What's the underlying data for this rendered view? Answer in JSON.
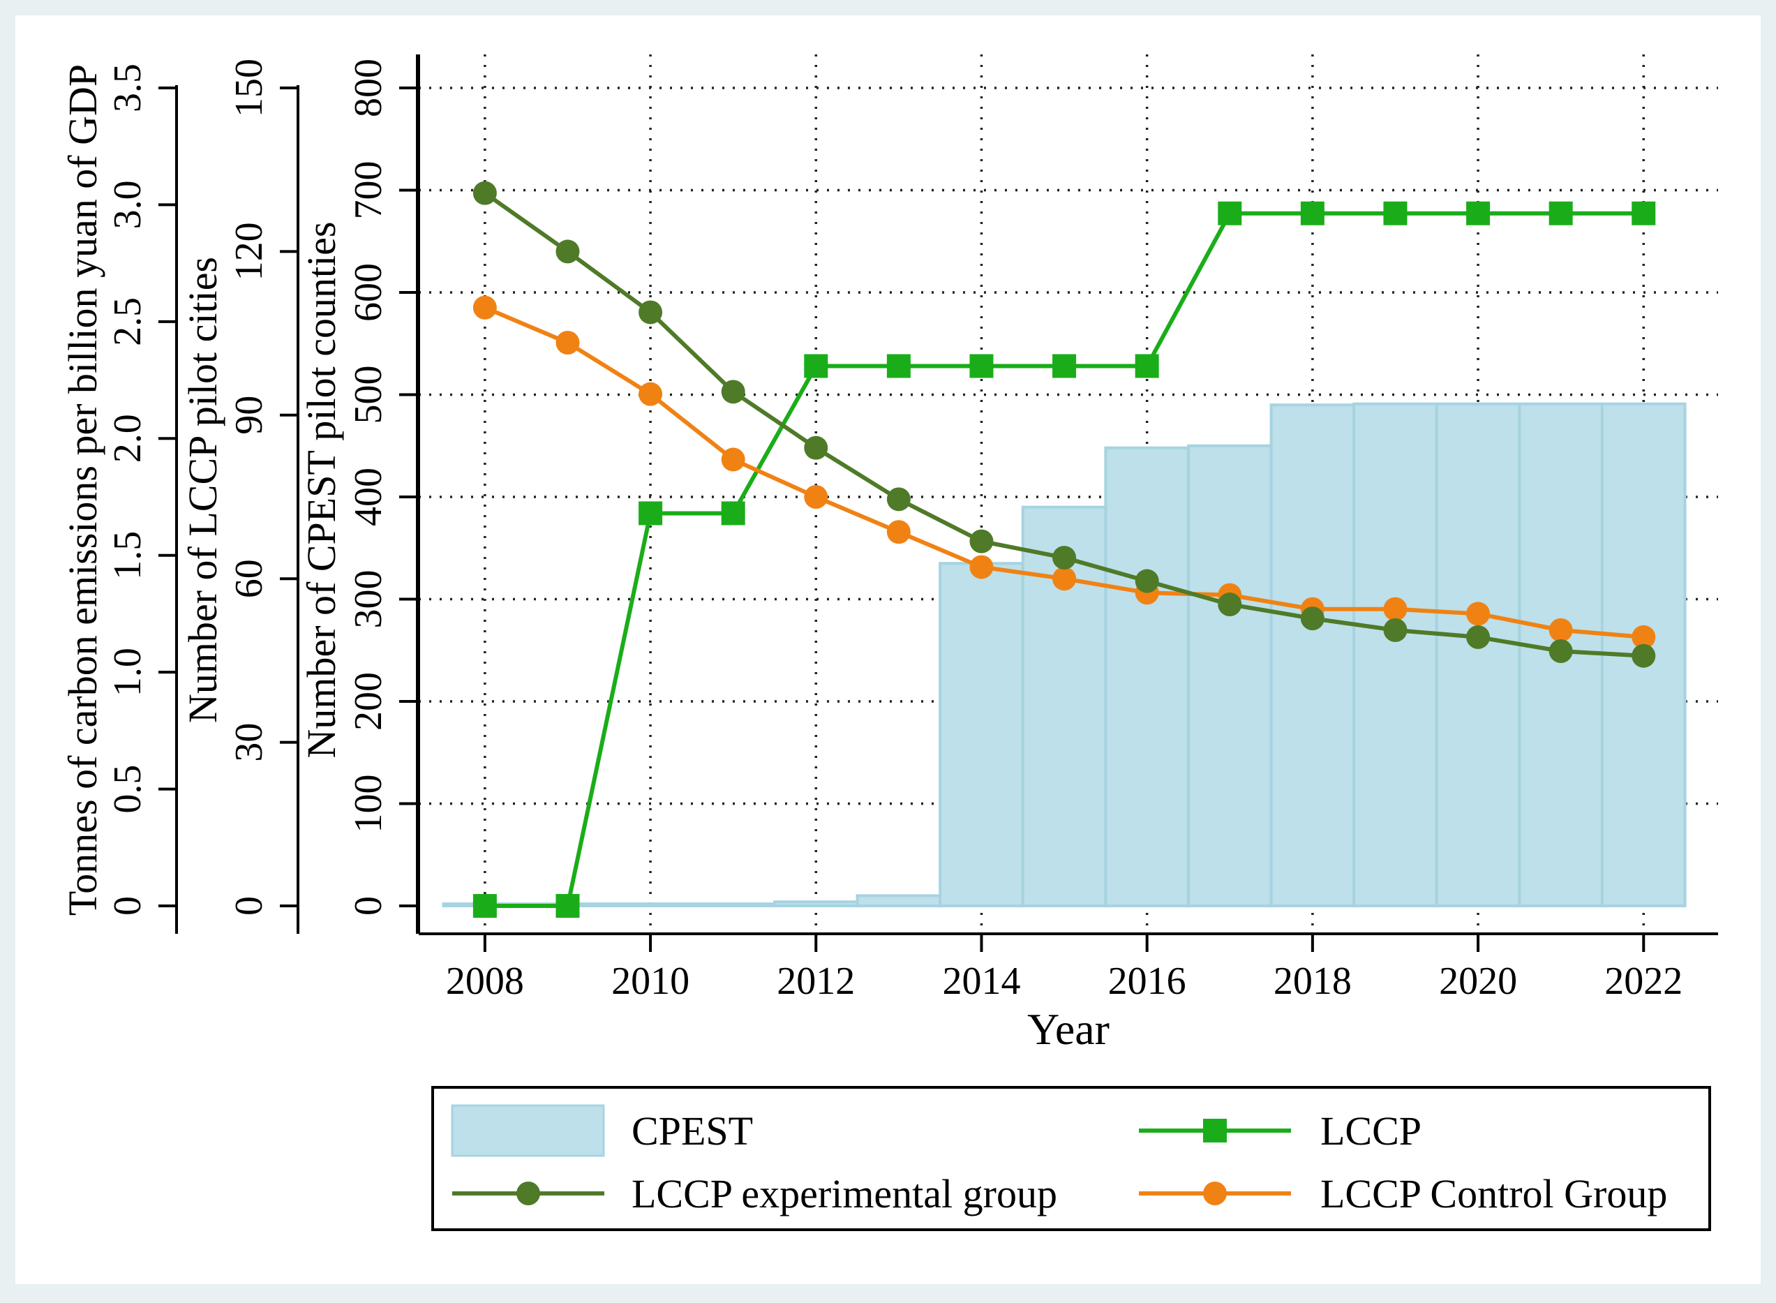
{
  "chart_data": {
    "type": "bar+line",
    "xlabel": "Year",
    "x": [
      2008,
      2009,
      2010,
      2011,
      2012,
      2013,
      2014,
      2015,
      2016,
      2017,
      2018,
      2019,
      2020,
      2021,
      2022
    ],
    "xticks": [
      "2008",
      "2010",
      "2012",
      "2014",
      "2016",
      "2018",
      "2020",
      "2022"
    ],
    "xlim": [
      2007.2,
      2022.9
    ],
    "axes": [
      {
        "id": "carbon",
        "label": "Tonnes of carbon emissions per billion yuan of GDP",
        "ylim": [
          0,
          3.5
        ],
        "ticks": [
          "0",
          "0.5",
          "1.0",
          "1.5",
          "2.0",
          "2.5",
          "3.0",
          "3.5"
        ],
        "tick_values": [
          0,
          0.5,
          1.0,
          1.5,
          2.0,
          2.5,
          3.0,
          3.5
        ]
      },
      {
        "id": "lccp",
        "label": "Number of LCCP pilot cities",
        "ylim": [
          0,
          150
        ],
        "ticks": [
          "0",
          "30",
          "60",
          "90",
          "120",
          "150"
        ],
        "tick_values": [
          0,
          30,
          60,
          90,
          120,
          150
        ]
      },
      {
        "id": "cpest",
        "label": "Number of CPEST pilot counties",
        "ylim": [
          0,
          800
        ],
        "ticks": [
          "0",
          "100",
          "200",
          "300",
          "400",
          "500",
          "600",
          "700",
          "800"
        ],
        "tick_values": [
          0,
          100,
          200,
          300,
          400,
          500,
          600,
          700,
          800
        ]
      }
    ],
    "grid": true,
    "series": [
      {
        "name": "CPEST",
        "kind": "bar",
        "axis": "cpest",
        "color": "#bde0ea",
        "edge": "#a7d3e0",
        "values": [
          2,
          2,
          2,
          2,
          4,
          10,
          335,
          390,
          448,
          450,
          490,
          491,
          491,
          491,
          491
        ]
      },
      {
        "name": "LCCP",
        "kind": "line",
        "marker": "square",
        "axis": "lccp",
        "color": "#1aad19",
        "values": [
          0,
          0,
          72,
          72,
          99,
          99,
          99,
          99,
          99,
          127,
          127,
          127,
          127,
          127,
          127
        ]
      },
      {
        "name": "LCCP experimental group",
        "kind": "line",
        "marker": "circle",
        "axis": "carbon",
        "color": "#4f7a28",
        "values": [
          3.05,
          2.8,
          2.54,
          2.2,
          1.96,
          1.74,
          1.56,
          1.49,
          1.39,
          1.29,
          1.23,
          1.18,
          1.15,
          1.09,
          1.07
        ]
      },
      {
        "name": "LCCP Control Group",
        "kind": "line",
        "marker": "circle",
        "axis": "carbon",
        "color": "#f08214",
        "values": [
          2.56,
          2.41,
          2.19,
          1.91,
          1.75,
          1.6,
          1.45,
          1.4,
          1.34,
          1.33,
          1.27,
          1.27,
          1.25,
          1.18,
          1.15
        ]
      }
    ],
    "legend": {
      "placement": "bottom",
      "entries": [
        "CPEST",
        "LCCP",
        "LCCP experimental group",
        "LCCP Control Group"
      ]
    }
  }
}
